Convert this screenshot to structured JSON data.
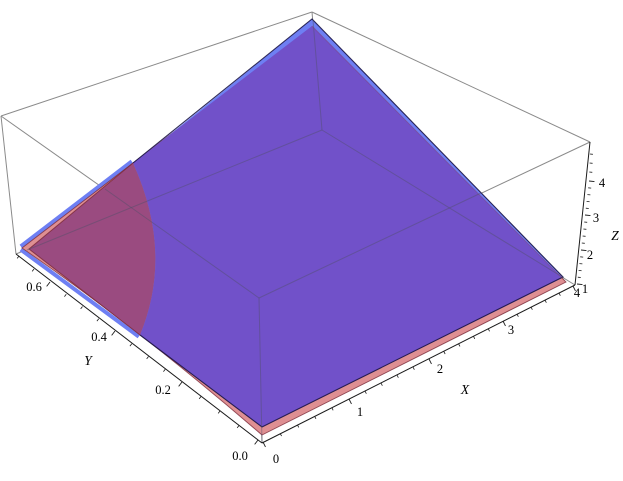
{
  "figure": {
    "kind": "3d-surface-plot",
    "background": "#ffffff",
    "title": ""
  },
  "chart_data": {
    "type": "surface3d",
    "title": "",
    "xlabel": "X",
    "ylabel": "Y",
    "zlabel": "Z",
    "xlim": [
      0,
      4
    ],
    "ylim": [
      0,
      0.7
    ],
    "zlim": [
      1,
      5.2
    ],
    "x_ticks": [
      "0",
      "1",
      "2",
      "3",
      "4"
    ],
    "y_ticks": [
      "0.0",
      "0.2",
      "0.4",
      "0.6"
    ],
    "z_ticks": [
      "1",
      "2",
      "3",
      "4"
    ],
    "grid": false,
    "legend": "none",
    "surfaces": [
      {
        "name": "blue-surface",
        "face_color": "#6E7FF3",
        "translucent": true,
        "description": "Ruled surface rising from z≈1 along the x=0 and y=0 edges to a single peak at the (x,y)=(4,0.7) corner; lies above the red surface over most of the domain (overlap renders purple).",
        "corner_z": {
          "x0_y0": 1.0,
          "x4_y0": 1.0,
          "x0_ymax": 1.0,
          "x4_ymax": 4.9
        }
      },
      {
        "name": "red-surface",
        "face_color": "#DE8F92",
        "translucent": true,
        "description": "Slightly below the blue surface over most of the domain (visible as a salmon strip along the front edges), but rises above it in a lens-shaped region near the (x,y)=(0,0.7) corner, seen as a dark magenta patch bounded by a circular arc.",
        "corner_z": {
          "x0_y0": 0.95,
          "x4_y0": 0.95,
          "x0_ymax": 1.15,
          "x4_ymax": 4.85
        }
      }
    ],
    "overlap_colors": {
      "blue_over_red": "#7151C9",
      "red_over_blue": "#9A4B80"
    },
    "colors": {
      "salmon": "#DE8F92",
      "blue": "#6E7FF3",
      "purple": "#7151C9",
      "maroon": "#9A4B80",
      "rim_navy": "rgba(25,20,70,0.9)",
      "rim_red": "rgba(122,40,55,0.8)",
      "box_gray": "#8a8a8a",
      "faint_gray": "rgba(80,80,105,0.45)",
      "faint_red": "rgba(140,50,70,0.35)",
      "axis": "#1a1a1a",
      "text": "#000000"
    }
  }
}
